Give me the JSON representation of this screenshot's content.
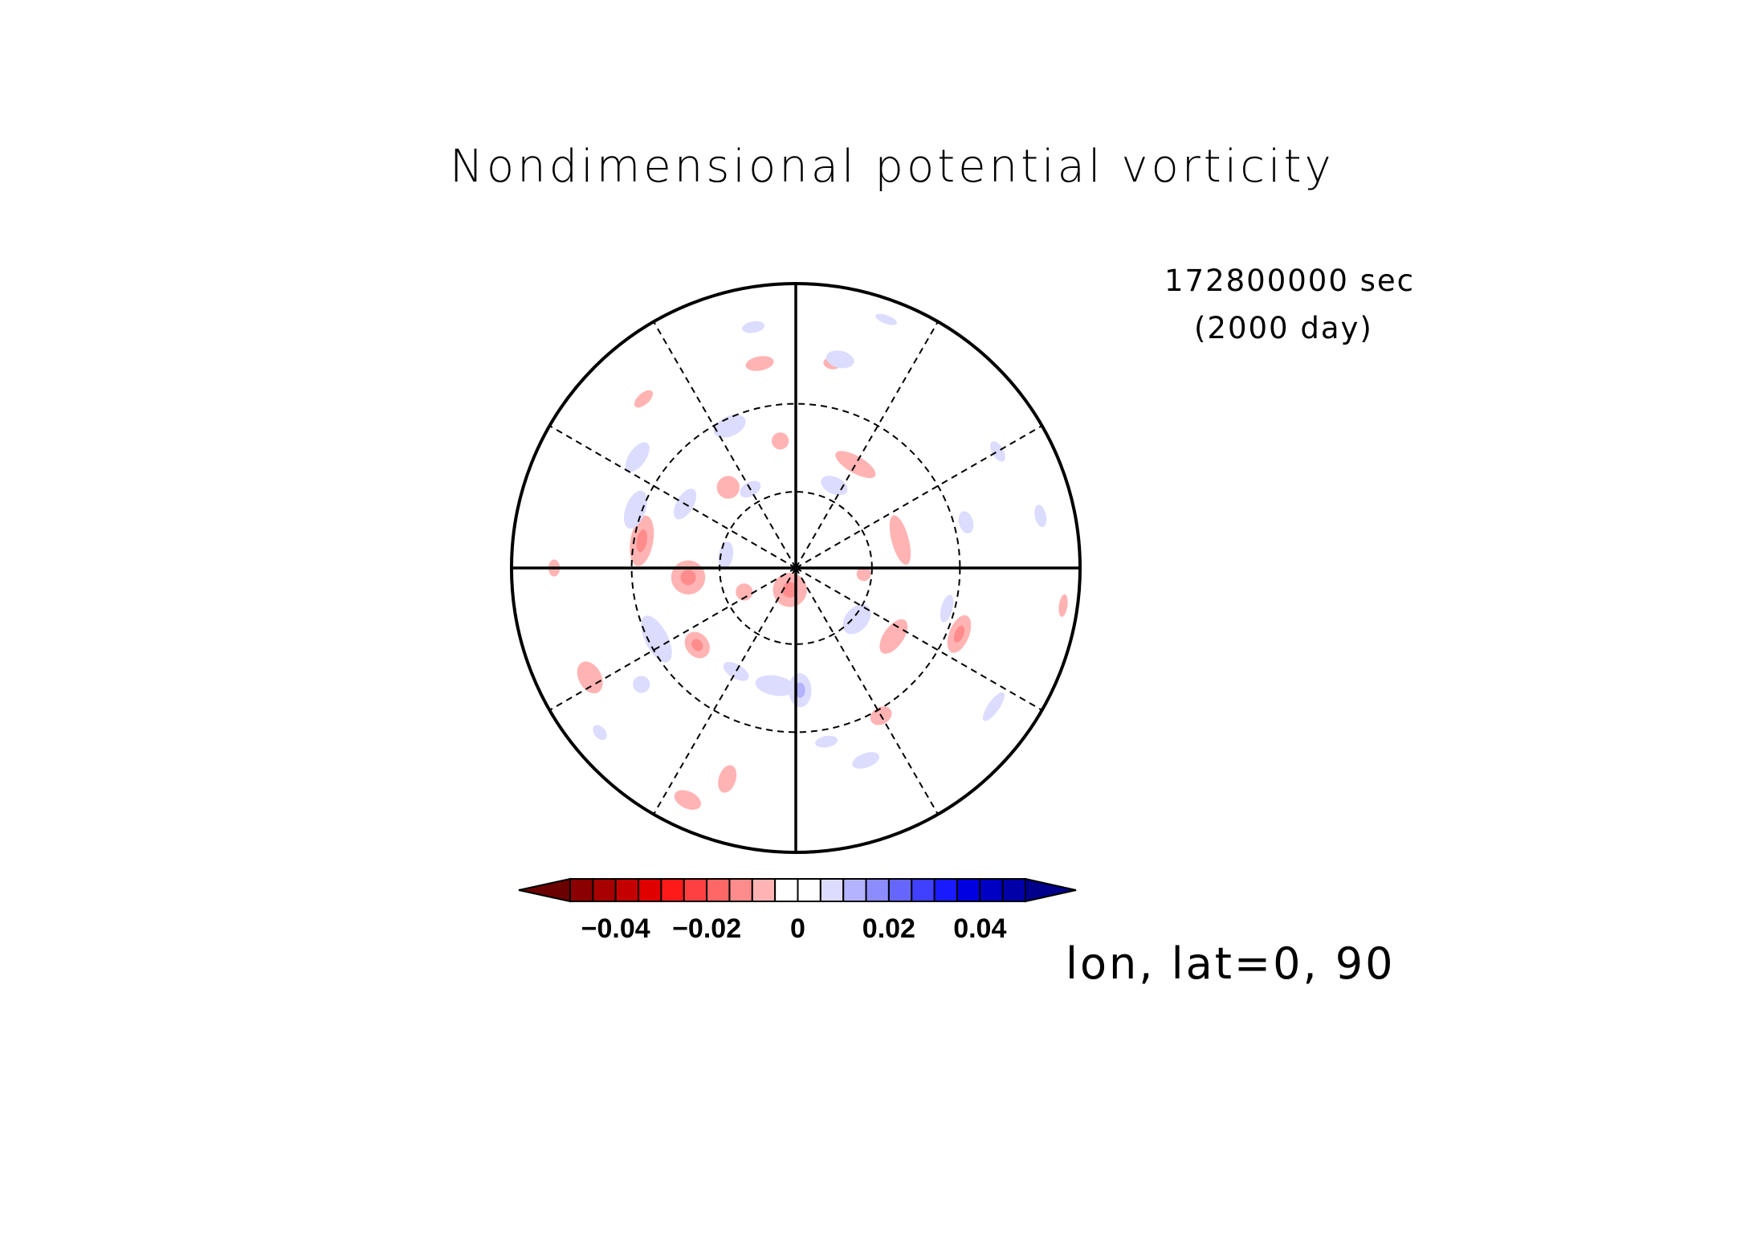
{
  "title": "Nondimensional potential vorticity",
  "time": {
    "seconds": "172800000 sec",
    "days": "(2000 day)"
  },
  "location": "lon, lat=0, 90",
  "colorbar": {
    "tick_labels": [
      "−0.04",
      "−0.02",
      "0",
      "0.02",
      "0.04"
    ],
    "tick_values": [
      -0.04,
      -0.02,
      0,
      0.02,
      0.04
    ],
    "low_extend_color": "#6b0000",
    "high_extend_color": "#00008b",
    "colors": [
      "#8b0000",
      "#a80000",
      "#c40000",
      "#e00000",
      "#ff1a1a",
      "#ff4040",
      "#ff6666",
      "#ff8c8c",
      "#ffb3b3",
      "#ffffff",
      "#ffffff",
      "#dcdcff",
      "#b3b3ff",
      "#8c8cff",
      "#6666ff",
      "#4040ff",
      "#1a1aff",
      "#0000e0",
      "#0000c4",
      "#0000a8"
    ],
    "levels_min": -0.05,
    "levels_max": 0.05
  },
  "chart_data": {
    "type": "polar-contour",
    "projection": "north-polar-stereographic",
    "center": {
      "lon": 0,
      "lat": 90
    },
    "lat_circles": [
      60,
      30
    ],
    "meridian_spacing_deg": 30,
    "positive_color": "#dcdcff",
    "negative_color": "#ffb3b3",
    "negative_core_color": "#ff8c8c",
    "positive_core_color": "#b3b3ff",
    "patches": [
      {
        "sign": -1,
        "r": 0.08,
        "theta": 195,
        "a": 0.06,
        "b": 0.06,
        "core": true
      },
      {
        "sign": -1,
        "r": 0.62,
        "theta": 112,
        "a": 0.07,
        "b": 0.035,
        "core": true
      },
      {
        "sign": -1,
        "r": 0.42,
        "theta": 125,
        "a": 0.07,
        "b": 0.035,
        "core": false
      },
      {
        "sign": -1,
        "r": 0.38,
        "theta": 75,
        "a": 0.09,
        "b": 0.03,
        "core": false
      },
      {
        "sign": -1,
        "r": 0.42,
        "theta": 30,
        "a": 0.08,
        "b": 0.03,
        "core": false
      },
      {
        "sign": -1,
        "r": 0.38,
        "theta": 265,
        "a": 0.06,
        "b": 0.06,
        "core": true
      },
      {
        "sign": -1,
        "r": 0.55,
        "theta": 280,
        "a": 0.09,
        "b": 0.04,
        "core": true
      },
      {
        "sign": -1,
        "r": 0.82,
        "theta": 242,
        "a": 0.06,
        "b": 0.04,
        "core": false
      },
      {
        "sign": -1,
        "r": 0.44,
        "theta": 232,
        "a": 0.05,
        "b": 0.04,
        "core": true
      },
      {
        "sign": -1,
        "r": 0.37,
        "theta": 320,
        "a": 0.04,
        "b": 0.04,
        "core": false
      },
      {
        "sign": -1,
        "r": 0.73,
        "theta": 350,
        "a": 0.05,
        "b": 0.025,
        "core": false
      },
      {
        "sign": -1,
        "r": 0.45,
        "theta": 353,
        "a": 0.03,
        "b": 0.03,
        "core": false
      },
      {
        "sign": -1,
        "r": 0.2,
        "theta": 245,
        "a": 0.03,
        "b": 0.03,
        "core": false
      },
      {
        "sign": -1,
        "r": 0.6,
        "theta": 150,
        "a": 0.04,
        "b": 0.03,
        "core": false
      },
      {
        "sign": -1,
        "r": 0.78,
        "theta": 198,
        "a": 0.03,
        "b": 0.05,
        "core": false
      },
      {
        "sign": -1,
        "r": 0.9,
        "theta": 205,
        "a": 0.05,
        "b": 0.03,
        "core": false
      },
      {
        "sign": -1,
        "r": 0.85,
        "theta": 270,
        "a": 0.03,
        "b": 0.02,
        "core": false
      },
      {
        "sign": -1,
        "r": 0.24,
        "theta": 95,
        "a": 0.025,
        "b": 0.025,
        "core": false
      },
      {
        "sign": -1,
        "r": 0.8,
        "theta": 318,
        "a": 0.04,
        "b": 0.02,
        "core": false
      },
      {
        "sign": -1,
        "r": 0.73,
        "theta": 10,
        "a": 0.03,
        "b": 0.02,
        "core": false
      },
      {
        "sign": -1,
        "r": 0.95,
        "theta": 98,
        "a": 0.04,
        "b": 0.015,
        "core": false
      },
      {
        "sign": 1,
        "r": 0.42,
        "theta": 190,
        "a": 0.07,
        "b": 0.035,
        "core": false
      },
      {
        "sign": 1,
        "r": 0.43,
        "theta": 178,
        "a": 0.04,
        "b": 0.06,
        "core": true
      },
      {
        "sign": 1,
        "r": 0.55,
        "theta": 243,
        "a": 0.09,
        "b": 0.04,
        "core": false
      },
      {
        "sign": 1,
        "r": 0.45,
        "theta": 300,
        "a": 0.06,
        "b": 0.03,
        "core": false
      },
      {
        "sign": 1,
        "r": 0.6,
        "theta": 290,
        "a": 0.07,
        "b": 0.035,
        "core": false
      },
      {
        "sign": 1,
        "r": 0.32,
        "theta": 25,
        "a": 0.05,
        "b": 0.03,
        "core": false
      },
      {
        "sign": 1,
        "r": 0.28,
        "theta": 130,
        "a": 0.06,
        "b": 0.04,
        "core": false
      },
      {
        "sign": 1,
        "r": 0.55,
        "theta": 335,
        "a": 0.06,
        "b": 0.035,
        "core": false
      },
      {
        "sign": 1,
        "r": 0.55,
        "theta": 105,
        "a": 0.05,
        "b": 0.02,
        "core": false
      },
      {
        "sign": 1,
        "r": 0.72,
        "theta": 160,
        "a": 0.05,
        "b": 0.025,
        "core": false
      },
      {
        "sign": 1,
        "r": 0.68,
        "theta": 305,
        "a": 0.06,
        "b": 0.03,
        "core": false
      },
      {
        "sign": 1,
        "r": 0.75,
        "theta": 12,
        "a": 0.05,
        "b": 0.03,
        "core": false
      },
      {
        "sign": 1,
        "r": 0.82,
        "theta": 60,
        "a": 0.04,
        "b": 0.02,
        "core": false
      },
      {
        "sign": 1,
        "r": 0.86,
        "theta": 350,
        "a": 0.04,
        "b": 0.02,
        "core": false
      },
      {
        "sign": 1,
        "r": 0.42,
        "theta": 210,
        "a": 0.05,
        "b": 0.025,
        "core": false
      },
      {
        "sign": 1,
        "r": 0.32,
        "theta": 330,
        "a": 0.04,
        "b": 0.025,
        "core": false
      },
      {
        "sign": 1,
        "r": 0.62,
        "theta": 75,
        "a": 0.04,
        "b": 0.025,
        "core": false
      },
      {
        "sign": 1,
        "r": 0.85,
        "theta": 125,
        "a": 0.06,
        "b": 0.02,
        "core": false
      },
      {
        "sign": 1,
        "r": 0.88,
        "theta": 78,
        "a": 0.04,
        "b": 0.02,
        "core": false
      },
      {
        "sign": 1,
        "r": 0.62,
        "theta": 170,
        "a": 0.04,
        "b": 0.02,
        "core": false
      },
      {
        "sign": 1,
        "r": 0.9,
        "theta": 230,
        "a": 0.03,
        "b": 0.02,
        "core": false
      },
      {
        "sign": 1,
        "r": 0.93,
        "theta": 20,
        "a": 0.04,
        "b": 0.015,
        "core": false
      },
      {
        "sign": 1,
        "r": 0.25,
        "theta": 280,
        "a": 0.05,
        "b": 0.025,
        "core": false
      },
      {
        "sign": 1,
        "r": 0.68,
        "theta": 233,
        "a": 0.03,
        "b": 0.03,
        "core": false
      }
    ]
  }
}
